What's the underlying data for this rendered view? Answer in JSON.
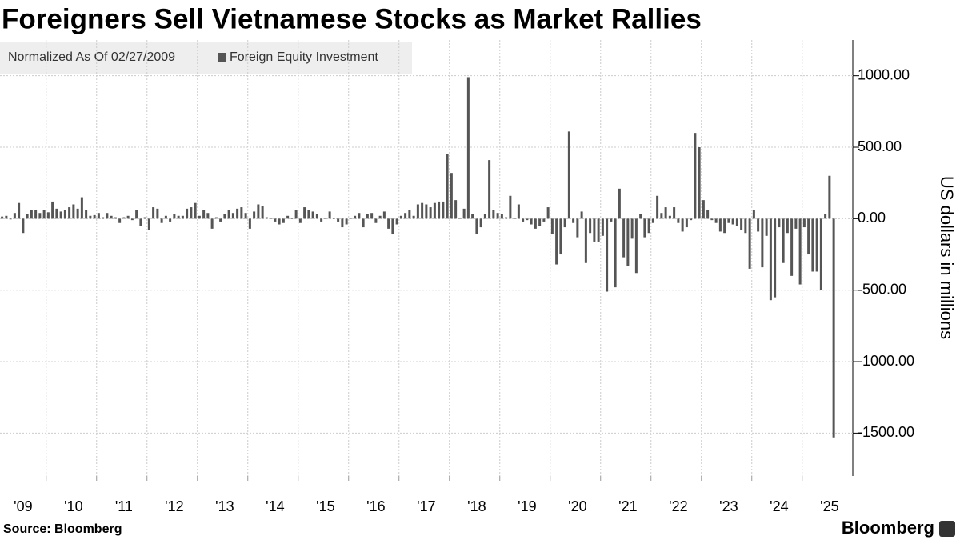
{
  "title": "Foreigners Sell Vietnamese Stocks as Market Rallies",
  "legend_note": "Normalized As Of 02/27/2009",
  "source": "Source: Bloomberg",
  "brand": "Bloomberg",
  "chart_data": {
    "type": "bar",
    "y_label": "US dollars in millions",
    "categories": [
      null,
      null,
      null,
      null,
      null,
      "'09",
      null,
      null,
      null,
      null,
      null,
      null,
      null,
      null,
      null,
      null,
      null,
      "'10",
      null,
      null,
      null,
      null,
      null,
      null,
      null,
      null,
      null,
      null,
      null,
      "'11",
      null,
      null,
      null,
      null,
      null,
      null,
      null,
      null,
      null,
      null,
      null,
      "'12",
      null,
      null,
      null,
      null,
      null,
      null,
      null,
      null,
      null,
      null,
      null,
      "'13",
      null,
      null,
      null,
      null,
      null,
      null,
      null,
      null,
      null,
      null,
      null,
      "'14",
      null,
      null,
      null,
      null,
      null,
      null,
      null,
      null,
      null,
      null,
      null,
      "'15",
      null,
      null,
      null,
      null,
      null,
      null,
      null,
      null,
      null,
      null,
      null,
      "'16",
      null,
      null,
      null,
      null,
      null,
      null,
      null,
      null,
      null,
      null,
      null,
      "'17",
      null,
      null,
      null,
      null,
      null,
      null,
      null,
      null,
      null,
      null,
      null,
      "'18",
      null,
      null,
      null,
      null,
      null,
      null,
      null,
      null,
      null,
      null,
      null,
      "'19",
      null,
      null,
      null,
      null,
      null,
      null,
      null,
      null,
      null,
      null,
      null,
      "'20",
      null,
      null,
      null,
      null,
      null,
      null,
      null,
      null,
      null,
      null,
      null,
      "'21",
      null,
      null,
      null,
      null,
      null,
      null,
      null,
      null,
      null,
      null,
      null,
      "'22",
      null,
      null,
      null,
      null,
      null,
      null,
      null,
      null,
      null,
      null,
      null,
      "'23",
      null,
      null,
      null,
      null,
      null,
      null,
      null,
      null,
      null,
      null,
      null,
      "'24",
      null,
      null,
      null,
      null,
      null,
      null,
      null,
      null,
      null,
      null,
      null,
      "'25",
      null
    ],
    "series": [
      {
        "name": "Foreign Equity Investment",
        "color": "#555555",
        "values": [
          15,
          20,
          -5,
          40,
          110,
          -100,
          30,
          60,
          60,
          40,
          60,
          45,
          120,
          70,
          50,
          60,
          80,
          100,
          70,
          150,
          60,
          20,
          25,
          40,
          10,
          40,
          20,
          10,
          -30,
          10,
          20,
          -10,
          60,
          -50,
          10,
          -80,
          80,
          70,
          -30,
          20,
          -20,
          30,
          20,
          20,
          70,
          80,
          110,
          20,
          60,
          40,
          -70,
          10,
          -20,
          30,
          60,
          40,
          70,
          80,
          40,
          -70,
          50,
          100,
          90,
          10,
          0,
          -20,
          -40,
          -30,
          20,
          0,
          60,
          -30,
          80,
          60,
          50,
          30,
          -20,
          0,
          50,
          0,
          -20,
          -60,
          -40,
          0,
          20,
          40,
          -60,
          30,
          40,
          -30,
          20,
          50,
          -70,
          -110,
          -40,
          20,
          40,
          60,
          20,
          100,
          110,
          100,
          80,
          110,
          120,
          120,
          450,
          320,
          130,
          0,
          70,
          990,
          30,
          -110,
          -60,
          30,
          410,
          60,
          40,
          30,
          10,
          160,
          0,
          100,
          -20,
          -10,
          -40,
          -70,
          -50,
          -20,
          80,
          -110,
          -320,
          -250,
          -60,
          610,
          -30,
          -130,
          50,
          -310,
          -100,
          -160,
          -160,
          -120,
          -510,
          -20,
          -480,
          210,
          -270,
          -330,
          -140,
          -380,
          30,
          -130,
          -100,
          -30,
          160,
          40,
          80,
          20,
          80,
          -30,
          -90,
          -60,
          -10,
          600,
          500,
          130,
          60,
          -10,
          -30,
          -90,
          -100,
          -30,
          -40,
          -50,
          -80,
          -100,
          -350,
          60,
          -90,
          -340,
          -120,
          -570,
          -550,
          -60,
          -310,
          -100,
          -400,
          -70,
          -460,
          -60,
          -250,
          -370,
          -370,
          -500,
          30,
          300,
          -1530
        ]
      }
    ],
    "ylim": [
      -1800,
      1250
    ],
    "yticks": [
      {
        "value": 1000,
        "label": "1000.00"
      },
      {
        "value": 500,
        "label": "500.00"
      },
      {
        "value": 0,
        "label": "0.00"
      },
      {
        "value": -500,
        "label": "-500.00"
      },
      {
        "value": -1000,
        "label": "-1000.00"
      },
      {
        "value": -1500,
        "label": "-1500.00"
      }
    ],
    "grid": true
  }
}
